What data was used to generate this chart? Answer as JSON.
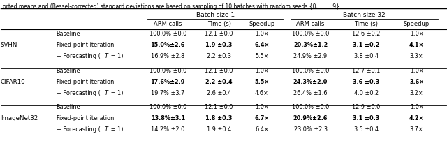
{
  "caption": "orted means and (Bessel-corrected) standard deviations are based on sampling of 10 batches with random seeds {0, . . . , 9}.",
  "figsize": [
    6.4,
    2.02
  ],
  "dpi": 100,
  "col_xs": {
    "dataset": 0.0,
    "method": 0.125,
    "b1_arm": 0.34,
    "b1_time": 0.46,
    "b1_speedup": 0.558,
    "b32_arm": 0.66,
    "b32_time": 0.79,
    "b32_speedup": 0.905
  },
  "row_groups": [
    {
      "dataset": "SVHN",
      "rows": [
        {
          "method": "Baseline",
          "b1_arm": "100.0% ±0.0",
          "b1_time": "12.1 ±0.0",
          "b1_speedup": "1.0×",
          "b32_arm": "100.0% ±0.0",
          "b32_time": "12.6 ±0.2",
          "b32_speedup": "1.0×",
          "bold": []
        },
        {
          "method": "Fixed-point iteration",
          "b1_arm": "15.0%±2.6",
          "b1_time": "1.9 ±0.3",
          "b1_speedup": "6.4×",
          "b32_arm": "20.3%±1.2",
          "b32_time": "3.1 ±0.2",
          "b32_speedup": "4.1×",
          "bold": [
            "b1_arm",
            "b1_time",
            "b1_speedup",
            "b32_arm",
            "b32_time",
            "b32_speedup"
          ]
        },
        {
          "method": "+ Forecasting (T = 1)",
          "b1_arm": "16.9% ±2.8",
          "b1_time": "2.2 ±0.3",
          "b1_speedup": "5.5×",
          "b32_arm": "24.9% ±2.9",
          "b32_time": "3.8 ±0.4",
          "b32_speedup": "3.3×",
          "bold": []
        }
      ]
    },
    {
      "dataset": "CIFAR10",
      "rows": [
        {
          "method": "Baseline",
          "b1_arm": "100.0% ±0.0",
          "b1_time": "12.1 ±0.0",
          "b1_speedup": "1.0×",
          "b32_arm": "100.0% ±0.0",
          "b32_time": "12.7 ±0.1",
          "b32_speedup": "1.0×",
          "bold": []
        },
        {
          "method": "Fixed-point iteration",
          "b1_arm": "17.6%±2.9",
          "b1_time": "2.2 ±0.4",
          "b1_speedup": "5.5×",
          "b32_arm": "24.3%±2.0",
          "b32_time": "3.6 ±0.3",
          "b32_speedup": "3.6×",
          "bold": [
            "b1_arm",
            "b1_time",
            "b1_speedup",
            "b32_arm",
            "b32_time",
            "b32_speedup"
          ]
        },
        {
          "method": "+ Forecasting (T = 1)",
          "b1_arm": "19.7% ±3.7",
          "b1_time": "2.6 ±0.4",
          "b1_speedup": "4.6×",
          "b32_arm": "26.4% ±1.6",
          "b32_time": "4.0 ±0.2",
          "b32_speedup": "3.2×",
          "bold": []
        }
      ]
    },
    {
      "dataset": "ImageNet32",
      "rows": [
        {
          "method": "Baseline",
          "b1_arm": "100.0% ±0.0",
          "b1_time": "12.1 ±0.0",
          "b1_speedup": "1.0×",
          "b32_arm": "100.0% ±0.0",
          "b32_time": "12.9 ±0.0",
          "b32_speedup": "1.0×",
          "bold": []
        },
        {
          "method": "Fixed-point iteration",
          "b1_arm": "13.8%±3.1",
          "b1_time": "1.8 ±0.3",
          "b1_speedup": "6.7×",
          "b32_arm": "20.9%±2.6",
          "b32_time": "3.1 ±0.3",
          "b32_speedup": "4.2×",
          "bold": [
            "b1_arm",
            "b1_time",
            "b1_speedup",
            "b32_arm",
            "b32_time",
            "b32_speedup"
          ]
        },
        {
          "method": "+ Forecasting (T = 1)",
          "b1_arm": "14.2% ±2.0",
          "b1_time": "1.9 ±0.4",
          "b1_speedup": "6.4×",
          "b32_arm": "23.0% ±2.3",
          "b32_time": "3.5 ±0.4",
          "b32_speedup": "3.7×",
          "bold": []
        }
      ]
    }
  ]
}
